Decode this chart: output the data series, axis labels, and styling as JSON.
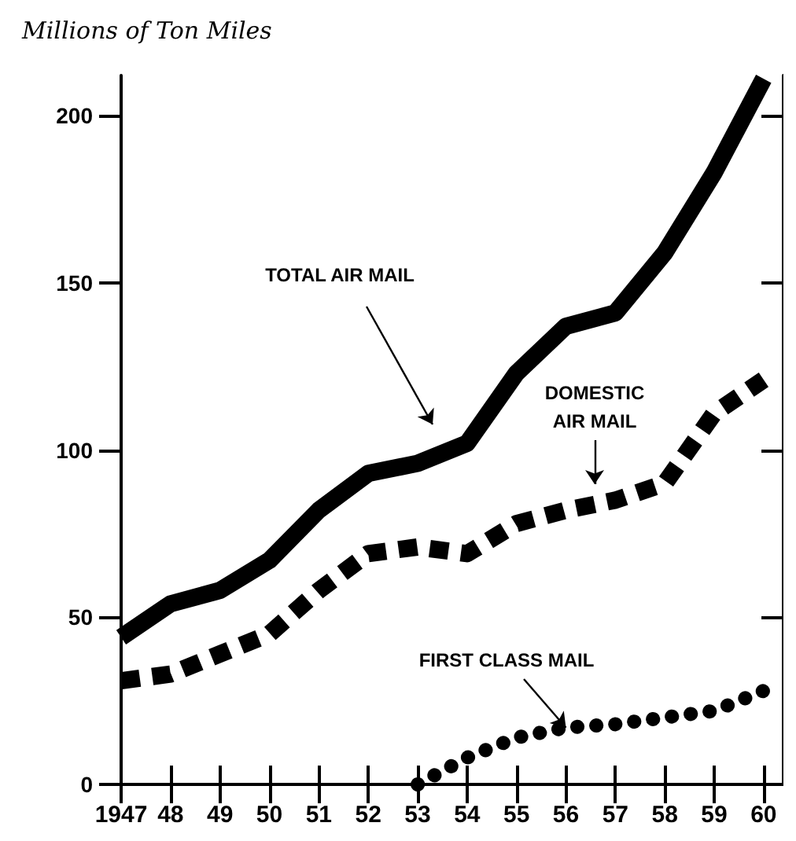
{
  "chart_data": {
    "type": "line",
    "ylabel": "Millions of Ton Miles",
    "xlim": [
      1947,
      1960.4
    ],
    "ylim": [
      0,
      212
    ],
    "xticks": [
      1947,
      {
        "value": 1948,
        "label": "48"
      },
      {
        "value": 1949,
        "label": "49"
      },
      {
        "value": 1950,
        "label": "50"
      },
      {
        "value": 1951,
        "label": "51"
      },
      {
        "value": 1952,
        "label": "52"
      },
      {
        "value": 1953,
        "label": "53"
      },
      {
        "value": 1954,
        "label": "54"
      },
      {
        "value": 1955,
        "label": "55"
      },
      {
        "value": 1956,
        "label": "56"
      },
      {
        "value": 1957,
        "label": "57"
      },
      {
        "value": 1958,
        "label": "58"
      },
      {
        "value": 1959,
        "label": "59"
      },
      {
        "value": 1960,
        "label": "60"
      }
    ],
    "yticks": [
      0,
      50,
      100,
      150,
      200
    ],
    "grid": false,
    "marker": "none",
    "series": [
      {
        "color": "#000000",
        "line_style": "solid",
        "x": [
          1947,
          1948,
          1949,
          1950,
          1951,
          1952,
          1953,
          1954,
          1955,
          1956,
          1957,
          1958,
          1959,
          1960
        ],
        "values": [
          44,
          54,
          58,
          67,
          82,
          93,
          96,
          102,
          123,
          137,
          141,
          159,
          183,
          211
        ]
      },
      {
        "color": "#000000",
        "line_style": "dashed",
        "x": [
          1947,
          1948,
          1949,
          1950,
          1951,
          1952,
          1953,
          1954,
          1955,
          1956,
          1957,
          1958,
          1959,
          1960
        ],
        "values": [
          31,
          33,
          39,
          45,
          58,
          69,
          71,
          69,
          78,
          82,
          85,
          90,
          111,
          121
        ]
      },
      {
        "color": "#000000",
        "line_style": "dotted",
        "x": [
          1953,
          1954,
          1955,
          1956,
          1957,
          1958,
          1959,
          1960
        ],
        "values": [
          0,
          8,
          14,
          17,
          18,
          20,
          22,
          28
        ]
      }
    ],
    "annotations": [
      "TOTAL AIR MAIL",
      "DOMESTIC\nAIR MAIL",
      {
        "text": "FIRST CLASS MAIL",
        "x": 1956,
        "y": 17
      }
    ]
  }
}
